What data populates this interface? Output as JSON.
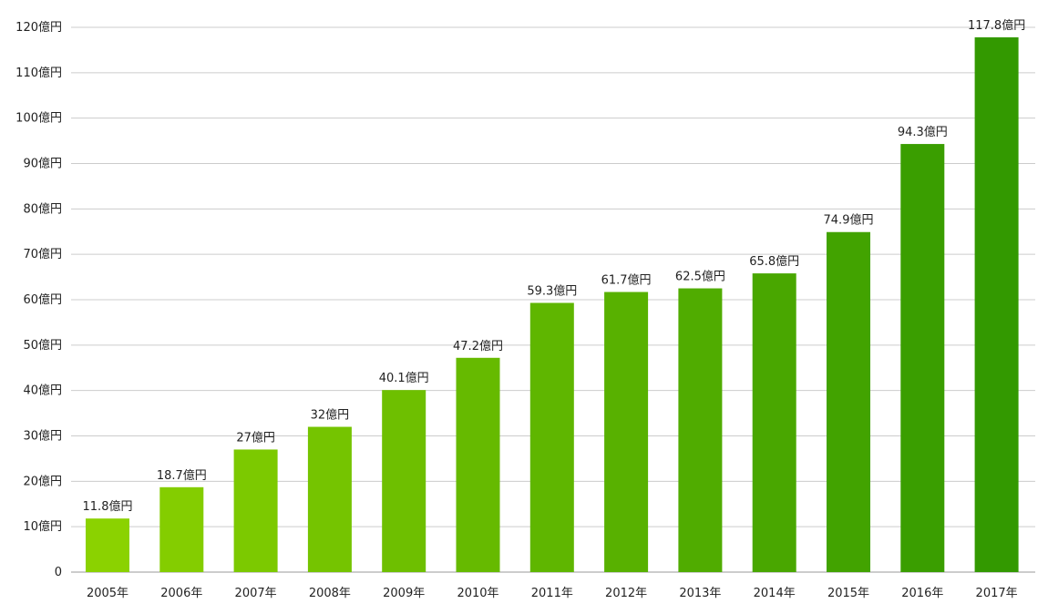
{
  "chart_data": {
    "type": "bar",
    "title": "",
    "xlabel": "",
    "ylabel": "",
    "categories": [
      "2005年",
      "2006年",
      "2007年",
      "2008年",
      "2009年",
      "2010年",
      "2011年",
      "2012年",
      "2013年",
      "2014年",
      "2015年",
      "2016年",
      "2017年"
    ],
    "values": [
      11.8,
      18.7,
      27,
      32,
      40.1,
      47.2,
      59.3,
      61.7,
      62.5,
      65.8,
      74.9,
      94.3,
      117.8
    ],
    "value_labels": [
      "11.8億円",
      "18.7億円",
      "27億円",
      "32億円",
      "40.1億円",
      "47.2億円",
      "59.3億円",
      "61.7億円",
      "62.5億円",
      "65.8億円",
      "74.9億円",
      "94.3億円",
      "117.8億円"
    ],
    "yticks": [
      0,
      10,
      20,
      30,
      40,
      50,
      60,
      70,
      80,
      90,
      100,
      110,
      120
    ],
    "ytick_labels": [
      "0",
      "10億円",
      "20億円",
      "30億円",
      "40億円",
      "50億円",
      "60億円",
      "70億円",
      "80億円",
      "90億円",
      "100億円",
      "110億円",
      "120億円"
    ],
    "ylim": [
      0,
      120
    ],
    "grid": true,
    "legend": "none",
    "colors": {
      "bar_start": "#8bd200",
      "bar_end": "#339900",
      "grid": "#cccccc",
      "axis": "#999999",
      "text": "#222222"
    }
  }
}
